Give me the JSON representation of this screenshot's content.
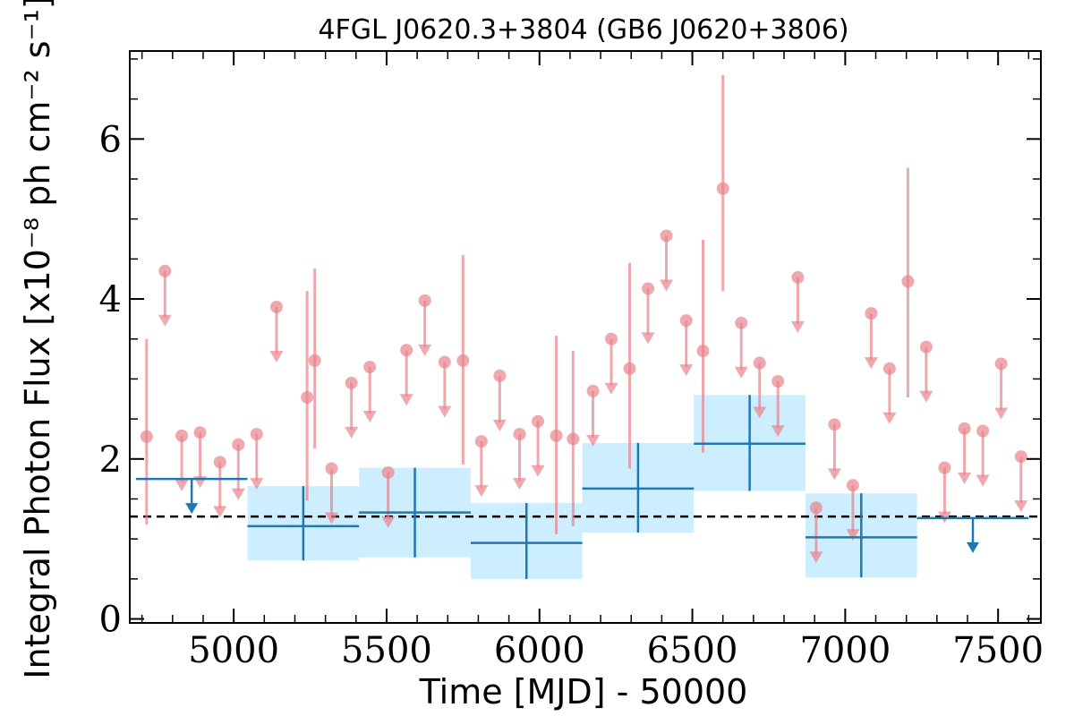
{
  "chart_data": {
    "type": "scatter",
    "title": "4FGL J0620.3+3804 (GB6 J0620+3806)",
    "xlabel": "Time [MJD] - 50000",
    "ylabel": "Integral Photon Flux [x10⁻⁸ ph cm⁻² s⁻¹]",
    "xlim": [
      4660,
      7640
    ],
    "ylim": [
      -0.05,
      7.1
    ],
    "xticks": [
      5000,
      5500,
      6000,
      6500,
      7000,
      7500
    ],
    "xtick_labels": [
      "5000",
      "5500",
      "6000",
      "6500",
      "7000",
      "7500"
    ],
    "yticks": [
      0,
      2,
      4,
      6
    ],
    "ytick_labels": [
      "0",
      "2",
      "4",
      "6"
    ],
    "grid": false,
    "legend": "none",
    "colors": {
      "short_bins": "#e8838a",
      "long_bins": "#1f77b4",
      "long_bins_band": "#cdeefe",
      "mean_line": "#000000"
    },
    "mean_flux": 1.28,
    "series": [
      {
        "points": [
          {
            "x": 4715,
            "y": 2.28,
            "ylow": 1.18,
            "yhigh": 3.5
          },
          {
            "x": 5240,
            "y": 2.77,
            "ylow": 1.48,
            "yhigh": 4.1
          },
          {
            "x": 5265,
            "y": 3.23,
            "ylow": 2.13,
            "yhigh": 4.38
          },
          {
            "x": 5750,
            "y": 3.23,
            "ylow": 1.93,
            "yhigh": 4.55
          },
          {
            "x": 6055,
            "y": 2.29,
            "ylow": 1.06,
            "yhigh": 3.54
          },
          {
            "x": 6110,
            "y": 2.25,
            "ylow": 1.16,
            "yhigh": 3.35
          },
          {
            "x": 6295,
            "y": 3.13,
            "ylow": 1.88,
            "yhigh": 4.45
          },
          {
            "x": 6535,
            "y": 3.35,
            "ylow": 2.08,
            "yhigh": 4.74
          },
          {
            "x": 6600,
            "y": 5.38,
            "ylow": 4.1,
            "yhigh": 6.8
          },
          {
            "x": 7205,
            "y": 4.22,
            "ylow": 2.77,
            "yhigh": 5.64
          }
        ],
        "upper_limits": [
          {
            "x": 4775,
            "y": 4.35
          },
          {
            "x": 4830,
            "y": 2.29
          },
          {
            "x": 4890,
            "y": 2.33
          },
          {
            "x": 4955,
            "y": 1.96
          },
          {
            "x": 5015,
            "y": 2.18
          },
          {
            "x": 5075,
            "y": 2.31
          },
          {
            "x": 5140,
            "y": 3.9
          },
          {
            "x": 5320,
            "y": 1.88
          },
          {
            "x": 5385,
            "y": 2.95
          },
          {
            "x": 5445,
            "y": 3.15
          },
          {
            "x": 5505,
            "y": 1.83
          },
          {
            "x": 5565,
            "y": 3.36
          },
          {
            "x": 5625,
            "y": 3.98
          },
          {
            "x": 5690,
            "y": 3.21
          },
          {
            "x": 5810,
            "y": 2.22
          },
          {
            "x": 5870,
            "y": 3.04
          },
          {
            "x": 5935,
            "y": 2.31
          },
          {
            "x": 5995,
            "y": 2.47
          },
          {
            "x": 6175,
            "y": 2.85
          },
          {
            "x": 6235,
            "y": 3.5
          },
          {
            "x": 6355,
            "y": 4.13
          },
          {
            "x": 6415,
            "y": 4.79
          },
          {
            "x": 6480,
            "y": 3.73
          },
          {
            "x": 6660,
            "y": 3.7
          },
          {
            "x": 6720,
            "y": 3.2
          },
          {
            "x": 6780,
            "y": 2.97
          },
          {
            "x": 6845,
            "y": 4.27
          },
          {
            "x": 6905,
            "y": 1.39
          },
          {
            "x": 6965,
            "y": 2.43
          },
          {
            "x": 7025,
            "y": 1.67
          },
          {
            "x": 7085,
            "y": 3.82
          },
          {
            "x": 7145,
            "y": 3.13
          },
          {
            "x": 7265,
            "y": 3.4
          },
          {
            "x": 7325,
            "y": 1.89
          },
          {
            "x": 7390,
            "y": 2.38
          },
          {
            "x": 7450,
            "y": 2.35
          },
          {
            "x": 7510,
            "y": 3.19
          },
          {
            "x": 7575,
            "y": 2.03
          }
        ]
      },
      {
        "points": [
          {
            "x0": 5045,
            "x1": 5410,
            "y": 1.16,
            "ylow": 0.73,
            "yhigh": 1.66
          },
          {
            "x0": 5410,
            "x1": 5775,
            "y": 1.33,
            "ylow": 0.77,
            "yhigh": 1.89
          },
          {
            "x0": 5775,
            "x1": 6140,
            "y": 0.95,
            "ylow": 0.5,
            "yhigh": 1.45
          },
          {
            "x0": 6140,
            "x1": 6505,
            "y": 1.63,
            "ylow": 1.08,
            "yhigh": 2.2
          },
          {
            "x0": 6505,
            "x1": 6870,
            "y": 2.19,
            "ylow": 1.6,
            "yhigh": 2.8
          },
          {
            "x0": 6870,
            "x1": 7235,
            "y": 1.02,
            "ylow": 0.52,
            "yhigh": 1.57
          }
        ],
        "upper_limits": [
          {
            "x0": 4680,
            "x1": 5045,
            "y": 1.75
          },
          {
            "x0": 7235,
            "x1": 7600,
            "y": 1.26
          }
        ]
      }
    ]
  }
}
